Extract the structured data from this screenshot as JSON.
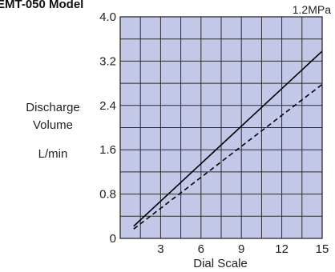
{
  "chart_data": {
    "type": "line",
    "title": "EMT-050 Model",
    "pressure_label": "1.2MPa",
    "ylabel_lines": [
      "Discharge",
      "Volume"
    ],
    "yunit": "L/min",
    "xlabel": "Dial Scale",
    "xlim": [
      0,
      15
    ],
    "ylim": [
      0,
      4.0
    ],
    "xticks": [
      3,
      6,
      9,
      12,
      15
    ],
    "yticks": [
      0,
      0.8,
      1.6,
      2.4,
      3.2,
      4.0
    ],
    "ytick_labels": [
      "0",
      "0.8",
      "1.6",
      "2.4",
      "3.2",
      "4.0"
    ],
    "grid": true,
    "series": [
      {
        "style": "solid",
        "points": [
          [
            1.0,
            0.22
          ],
          [
            15.0,
            3.38
          ]
        ]
      },
      {
        "style": "dashed",
        "points": [
          [
            1.0,
            0.17
          ],
          [
            15.0,
            2.78
          ]
        ]
      }
    ],
    "colors": {
      "plot_bg": "#c4c8e8",
      "grid": "#2a2a2a",
      "line": "#000000"
    }
  }
}
